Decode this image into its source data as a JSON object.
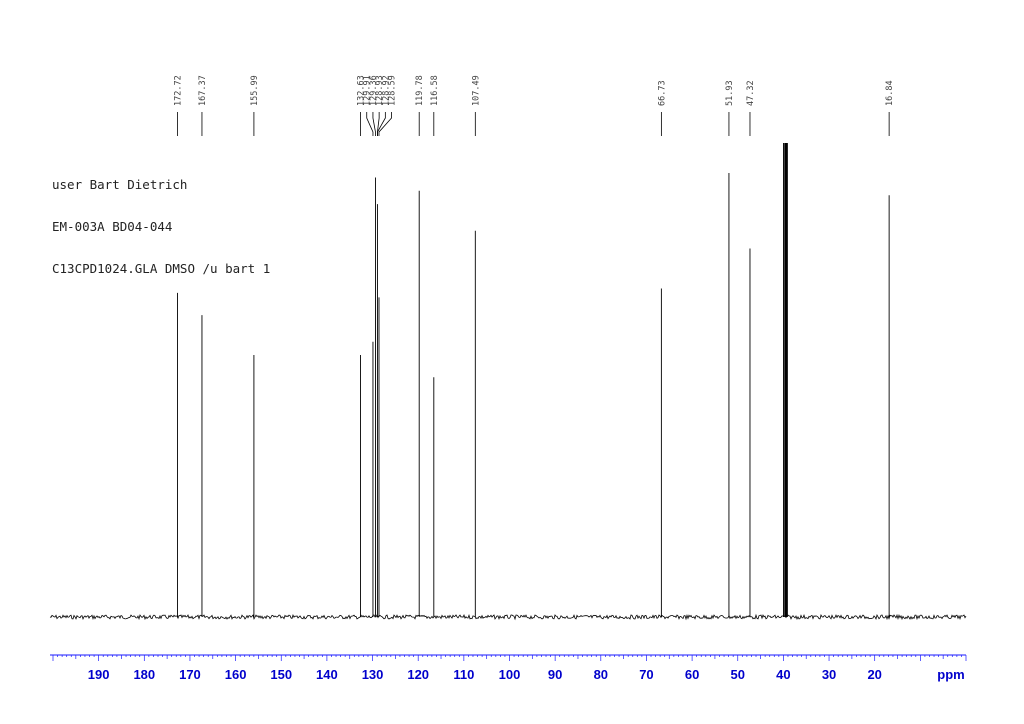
{
  "info_lines": [
    "user Bart Dietrich",
    "EM-003A BD04-044",
    "C13CPD1024.GLA DMSO /u bart 1"
  ],
  "chart_data": {
    "type": "line",
    "title": "",
    "xlabel": "ppm",
    "ylabel": "",
    "xlim": [
      200,
      0
    ],
    "x_reversed": true,
    "xticks": [
      "190",
      "180",
      "170",
      "160",
      "150",
      "140",
      "130",
      "120",
      "110",
      "100",
      "90",
      "80",
      "70",
      "60",
      "50",
      "40",
      "30",
      "20"
    ],
    "peak_labels": [
      "172.72",
      "167.37",
      "155.99",
      "132.63",
      "129.91",
      "129.36",
      "128.93",
      "128.92",
      "128.59",
      "119.78",
      "116.58",
      "107.49",
      "66.73",
      "51.93",
      "47.32",
      "16.84"
    ],
    "peaks": [
      {
        "ppm": 172.72,
        "height": 0.73
      },
      {
        "ppm": 167.37,
        "height": 0.68
      },
      {
        "ppm": 155.99,
        "height": 0.59
      },
      {
        "ppm": 132.63,
        "height": 0.59
      },
      {
        "ppm": 129.91,
        "height": 0.62
      },
      {
        "ppm": 129.36,
        "height": 0.99
      },
      {
        "ppm": 128.93,
        "height": 0.93
      },
      {
        "ppm": 128.59,
        "height": 0.72
      },
      {
        "ppm": 119.78,
        "height": 0.96
      },
      {
        "ppm": 116.58,
        "height": 0.54
      },
      {
        "ppm": 107.49,
        "height": 0.87
      },
      {
        "ppm": 66.73,
        "height": 0.74
      },
      {
        "ppm": 51.93,
        "height": 1.0
      },
      {
        "ppm": 47.32,
        "height": 0.83
      },
      {
        "ppm": 39.9,
        "height": 1.08
      },
      {
        "ppm": 39.5,
        "height": 1.08
      },
      {
        "ppm": 39.2,
        "height": 1.08
      },
      {
        "ppm": 16.84,
        "height": 0.95
      }
    ],
    "colors": {
      "spectrum": "#000000",
      "axis": "#1a1aff",
      "labels": "#0000cc"
    }
  }
}
